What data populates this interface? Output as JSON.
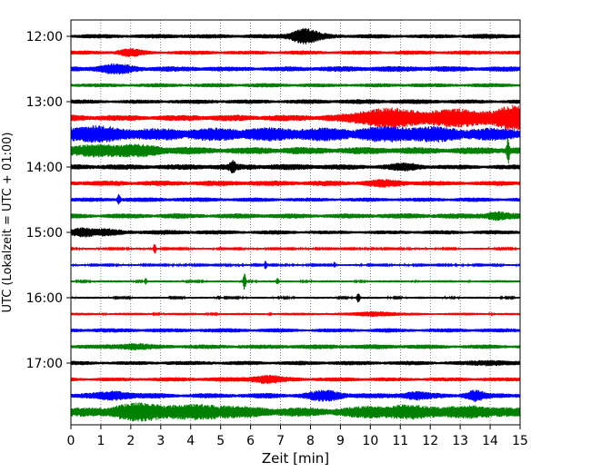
{
  "chart_data": {
    "type": "line",
    "title": "",
    "xlabel": "Zeit  [min]",
    "ylabel": "UTC (Lokalzeit = UTC + 01:00)",
    "xlim": [
      0,
      15
    ],
    "x_ticks": [
      0,
      1,
      2,
      3,
      4,
      5,
      6,
      7,
      8,
      9,
      10,
      11,
      12,
      13,
      14,
      15
    ],
    "y_tick_labels": [
      "12:00",
      "13:00",
      "14:00",
      "15:00",
      "16:00",
      "17:00"
    ],
    "grid": "vertical dotted",
    "legend": "none",
    "trace_interval_minutes": 15,
    "colors": [
      "#000000",
      "#ff0000",
      "#0000ff",
      "#008000"
    ],
    "traces": [
      {
        "time": "12:00",
        "color": "#000000",
        "base": 2,
        "events": [
          [
            7.8,
            7,
            0.5
          ]
        ]
      },
      {
        "time": "12:15",
        "color": "#ff0000",
        "base": 2,
        "events": [
          [
            2.0,
            3,
            0.4
          ]
        ]
      },
      {
        "time": "12:30",
        "color": "#0000ff",
        "base": 2.5,
        "events": [
          [
            1.5,
            3,
            0.6
          ]
        ]
      },
      {
        "time": "12:45",
        "color": "#008000",
        "base": 2,
        "events": []
      },
      {
        "time": "13:00",
        "color": "#000000",
        "base": 2,
        "events": []
      },
      {
        "time": "13:15",
        "color": "#ff0000",
        "base": 3,
        "events": [
          [
            10.5,
            8,
            1.0
          ],
          [
            13.0,
            7,
            1.5
          ],
          [
            14.8,
            10,
            0.5
          ]
        ]
      },
      {
        "time": "13:30",
        "color": "#0000ff",
        "base": 6,
        "events": [
          [
            0.5,
            3,
            1.5
          ],
          [
            11.5,
            3,
            1.5
          ]
        ]
      },
      {
        "time": "13:45",
        "color": "#008000",
        "base": 3.5,
        "events": [
          [
            1.5,
            4,
            1.5
          ],
          [
            14.6,
            12,
            0.05
          ]
        ]
      },
      {
        "time": "14:00",
        "color": "#000000",
        "base": 2.5,
        "events": [
          [
            5.4,
            5,
            0.1
          ],
          [
            11.2,
            2,
            0.5
          ]
        ]
      },
      {
        "time": "14:15",
        "color": "#ff0000",
        "base": 2.5,
        "events": [
          [
            10.5,
            2,
            0.6
          ]
        ]
      },
      {
        "time": "14:30",
        "color": "#0000ff",
        "base": 2,
        "events": [
          [
            1.6,
            5,
            0.05
          ]
        ]
      },
      {
        "time": "14:45",
        "color": "#008000",
        "base": 2.5,
        "events": [
          [
            14.2,
            3,
            0.4
          ]
        ]
      },
      {
        "time": "15:00",
        "color": "#000000",
        "base": 2,
        "events": [
          [
            0.4,
            4,
            0.4
          ],
          [
            1.2,
            2,
            0.4
          ]
        ]
      },
      {
        "time": "15:15",
        "color": "#ff0000",
        "base": 0.8,
        "events": [
          [
            2.8,
            6,
            0.04
          ]
        ]
      },
      {
        "time": "15:30",
        "color": "#0000ff",
        "base": 0.8,
        "events": [
          [
            6.5,
            5,
            0.04
          ],
          [
            8.8,
            3,
            0.04
          ]
        ]
      },
      {
        "time": "15:45",
        "color": "#008000",
        "base": 1,
        "events": [
          [
            5.8,
            9,
            0.05
          ],
          [
            2.5,
            3,
            0.04
          ],
          [
            6.9,
            3,
            0.04
          ]
        ]
      },
      {
        "time": "16:00",
        "color": "#000000",
        "base": 1,
        "events": [
          [
            9.6,
            5,
            0.05
          ]
        ]
      },
      {
        "time": "16:15",
        "color": "#ff0000",
        "base": 1.2,
        "events": [
          [
            10.2,
            2,
            0.6
          ]
        ]
      },
      {
        "time": "16:30",
        "color": "#0000ff",
        "base": 2,
        "events": []
      },
      {
        "time": "16:45",
        "color": "#008000",
        "base": 2,
        "events": [
          [
            2.0,
            2,
            0.6
          ]
        ]
      },
      {
        "time": "17:00",
        "color": "#000000",
        "base": 2,
        "events": [
          [
            14.0,
            2,
            0.5
          ]
        ]
      },
      {
        "time": "17:15",
        "color": "#ff0000",
        "base": 2,
        "events": [
          [
            6.5,
            3,
            0.5
          ]
        ]
      },
      {
        "time": "17:30",
        "color": "#0000ff",
        "base": 2.5,
        "events": [
          [
            1.5,
            3,
            0.6
          ],
          [
            8.5,
            4,
            0.6
          ],
          [
            11.5,
            3,
            0.5
          ],
          [
            13.5,
            4,
            0.3
          ]
        ]
      },
      {
        "time": "17:45",
        "color": "#008000",
        "base": 4,
        "events": [
          [
            2.3,
            6,
            1.0
          ],
          [
            4.5,
            4,
            1.2
          ],
          [
            11.0,
            4,
            1.5
          ],
          [
            13.5,
            3,
            1.2
          ]
        ]
      }
    ]
  }
}
